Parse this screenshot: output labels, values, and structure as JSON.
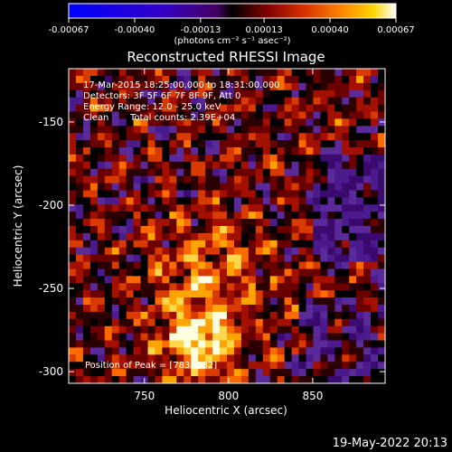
{
  "chart_data": {
    "type": "heatmap",
    "title": "Reconstructed RHESSI Image",
    "xlabel": "Heliocentric X (arcsec)",
    "ylabel": "Heliocentric Y (arcsec)",
    "xlim": [
      705,
      893
    ],
    "ylim": [
      -307,
      -118
    ],
    "x_ticks": [
      750,
      800,
      850
    ],
    "y_ticks": [
      -150,
      -200,
      -250,
      -300
    ],
    "colorbar": {
      "min": -0.00067,
      "max": 0.00067,
      "tick_values": [
        -0.00067,
        -0.0004,
        -0.00013,
        0.00013,
        0.0004,
        0.00067
      ],
      "tick_labels": [
        "-0.00067",
        "-0.00040",
        "-0.00013",
        "0.00013",
        "0.00040",
        "0.00067"
      ],
      "units": "(photons cm⁻² s⁻¹ asec⁻²)"
    },
    "annotations": {
      "time": "17-Mar-2015 18:25:00.000 to 18:31:00.000",
      "detectors": "Detectors: 3F 5F 6F 7F 8F 9F, Att 0",
      "energy": "Energy Range: 12.0 - 25.0 keV",
      "method": "Clean",
      "counts": "Total counts: 2.39E+04",
      "peak": "Position of Peak = [783,-282]"
    },
    "peak": [
      783,
      -282
    ],
    "grid": false,
    "legend": "none"
  },
  "footer": {
    "timestamp": "19-May-2022 20:13"
  }
}
